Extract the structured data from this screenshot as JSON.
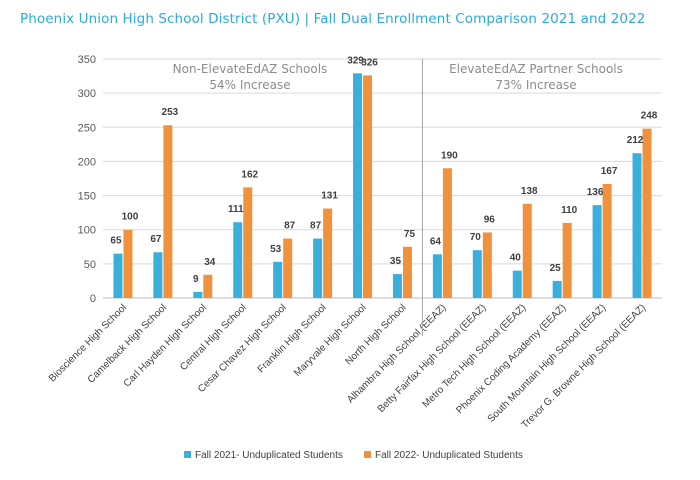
{
  "title": "Phoenix Union High School District (PXU) | Fall Dual Enrollment Comparison 2021 and 2022",
  "colors": {
    "fall2021": "#3aafdc",
    "fall2022": "#f0923c",
    "grid": "#d9d9d9",
    "divider": "#a6a6a6",
    "title": "#29abe2"
  },
  "chart_data": {
    "type": "bar",
    "categories": [
      "Bioscience High School",
      "Camelback High School",
      "Carl Hayden High School",
      "Central High School",
      "Cesar Chavez High School",
      "Franklin High School",
      "Maryvale High School",
      "North High School",
      "Alhambra High School (EEAZ)",
      "Betty Fairfax High School (EEAZ)",
      "Metro Tech High School (EEAZ)",
      "Phoenix Coding Academy (EEAZ)",
      "South Mountain High School (EEAZ)",
      "Trevor G. Browne High School (EEAZ)"
    ],
    "series": [
      {
        "name": "Fall 2021- Unduplicated Students",
        "values": [
          65,
          67,
          9,
          111,
          53,
          87,
          329,
          35,
          64,
          70,
          40,
          25,
          136,
          212
        ]
      },
      {
        "name": "Fall 2022- Unduplicated Students",
        "values": [
          100,
          253,
          34,
          162,
          87,
          131,
          326,
          75,
          190,
          96,
          138,
          110,
          167,
          248
        ]
      }
    ],
    "ylim": [
      0,
      350
    ],
    "yticks": [
      0,
      50,
      100,
      150,
      200,
      250,
      300,
      350
    ],
    "grid": true,
    "legend": "bottom",
    "annotations": [
      {
        "line1": "Non-ElevateEdAZ Schools",
        "line2": "54% Increase"
      },
      {
        "line1": "ElevateEdAZ Partner Schools",
        "line2": "73% Increase"
      }
    ]
  }
}
